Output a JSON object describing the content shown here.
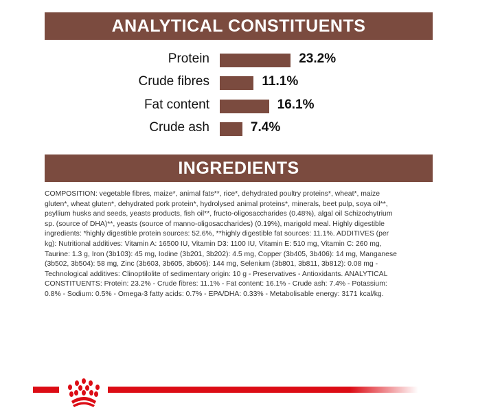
{
  "analytical": {
    "title": "ANALYTICAL CONSTITUENTS",
    "items": [
      {
        "label": "Protein",
        "value": 23.2,
        "display": "23.2%"
      },
      {
        "label": "Crude fibres",
        "value": 11.1,
        "display": "11.1%"
      },
      {
        "label": "Fat content",
        "value": 16.1,
        "display": "16.1%"
      },
      {
        "label": "Crude ash",
        "value": 7.4,
        "display": "7.4%"
      }
    ]
  },
  "ingredients": {
    "title": "INGREDIENTS",
    "lines": [
      "COMPOSITION: vegetable fibres, maize*, animal fats**, rice*, dehydrated poultry proteins*, wheat*, maize",
      "gluten*, wheat gluten*, dehydrated pork protein*, hydrolysed animal proteins*, minerals, beet pulp, soya oil**,",
      "psyllium husks and seeds, yeasts products, fish oil**, fructo-oligosaccharides (0.48%), algal oil Schizochytrium",
      "sp. (source of DHA)**, yeasts (source of manno-oligosaccharides) (0.19%), marigold meal. Highly digestible",
      "ingredients: *highly digestible protein sources: 52.6%, **highly digestible fat sources: 11.1%. ADDITIVES (per",
      "kg): Nutritional additives: Vitamin A: 16500 IU, Vitamin D3: 1100 IU, Vitamin E: 510 mg, Vitamin C: 260 mg,",
      "Taurine: 1.3 g, Iron (3b103): 45 mg, Iodine (3b201, 3b202): 4.5 mg, Copper (3b405, 3b406): 14 mg, Manganese",
      "(3b502, 3b504): 58 mg, Zinc (3b603, 3b605, 3b606): 144 mg, Selenium (3b801, 3b811, 3b812): 0.08 mg -",
      "Technological additives: Clinoptilolite of sedimentary origin: 10 g - Preservatives - Antioxidants. ANALYTICAL",
      "CONSTITUENTS: Protein: 23.2% - Crude fibres: 11.1% - Fat content: 16.1% - Crude ash: 7.4% - Potassium:",
      "0.8% - Sodium: 0.5% - Omega-3 fatty acids: 0.7% - EPA/DHA: 0.33% - Metabolisable energy: 3171 kcal/kg."
    ]
  },
  "colors": {
    "brown": "#7b4b3f",
    "red": "#dc0c15"
  },
  "logo": {
    "icon": "royal-canin-crown-icon"
  }
}
